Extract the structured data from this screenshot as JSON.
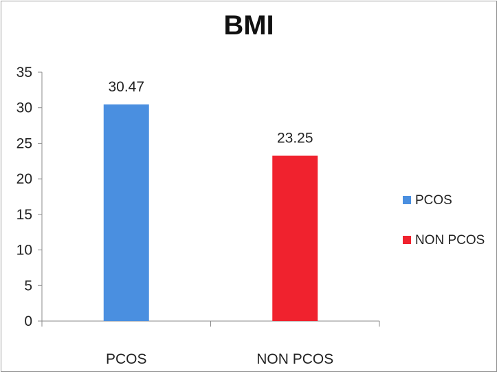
{
  "chart_data": {
    "type": "bar",
    "title": "BMI",
    "categories": [
      "PCOS",
      "NON PCOS"
    ],
    "values": [
      30.47,
      23.25
    ],
    "data_labels": [
      "30.47",
      "23.25"
    ],
    "colors": [
      "#4a8fe0",
      "#f0222e"
    ],
    "ylim": [
      0,
      35
    ],
    "y_ticks": [
      "0",
      "5",
      "10",
      "15",
      "20",
      "25",
      "30",
      "35"
    ],
    "grid": false,
    "legend": {
      "position": "right",
      "entries": [
        {
          "label": "PCOS",
          "color": "#4a8fe0"
        },
        {
          "label": "NON PCOS",
          "color": "#f0222e"
        }
      ]
    }
  }
}
